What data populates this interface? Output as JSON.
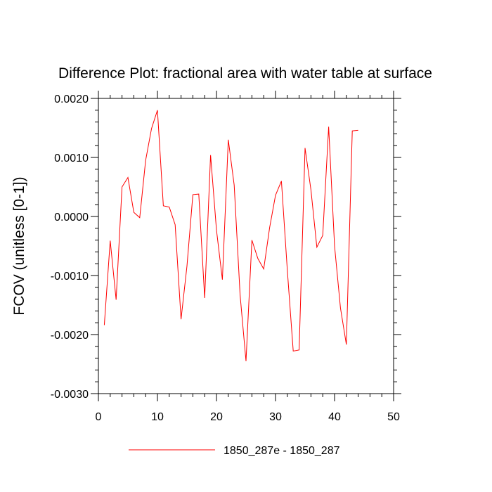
{
  "chart_data": {
    "type": "line",
    "title": "Difference Plot: fractional area with water table at surface",
    "xlabel": "",
    "ylabel": "FCOV  (unitless [0-1])",
    "xlim": [
      0,
      50
    ],
    "ylim": [
      -0.003,
      0.002
    ],
    "x_ticks": [
      0,
      10,
      20,
      30,
      40,
      50
    ],
    "x_tick_labels": [
      "0",
      "10",
      "20",
      "30",
      "40",
      "50"
    ],
    "y_ticks": [
      -0.003,
      -0.002,
      -0.001,
      0.0,
      0.001,
      0.002
    ],
    "y_tick_labels": [
      "-0.0030",
      "-0.0020",
      "-0.0010",
      "0.0000",
      "0.0010",
      "0.0020"
    ],
    "grid": false,
    "legend_position": "bottom-center",
    "series": [
      {
        "name": "1850_287e - 1850_287",
        "color": "#ff0000",
        "x": [
          1,
          2,
          3,
          4,
          5,
          6,
          7,
          8,
          9,
          10,
          11,
          12,
          13,
          14,
          15,
          16,
          17,
          18,
          19,
          20,
          21,
          22,
          23,
          24,
          25,
          26,
          27,
          28,
          29,
          30,
          31,
          32,
          33,
          34,
          35,
          36,
          37,
          38,
          39,
          40,
          41,
          42,
          43,
          44
        ],
        "values": [
          -0.00184,
          -0.00041,
          -0.00141,
          0.0005,
          0.00066,
          7e-05,
          -2e-05,
          0.00095,
          0.00149,
          0.0018,
          0.00018,
          0.00016,
          -0.00014,
          -0.00174,
          -0.00084,
          0.00037,
          0.00038,
          -0.00138,
          0.00104,
          -0.00023,
          -0.00107,
          0.0013,
          0.00053,
          -0.00133,
          -0.00245,
          -0.0004,
          -0.00071,
          -0.00089,
          -0.00019,
          0.00036,
          0.0006,
          -0.00091,
          -0.00228,
          -0.00226,
          0.00116,
          0.00045,
          -0.00052,
          -0.00032,
          0.00152,
          -0.0005,
          -0.00155,
          -0.00217,
          0.00145,
          0.00146
        ]
      }
    ]
  }
}
